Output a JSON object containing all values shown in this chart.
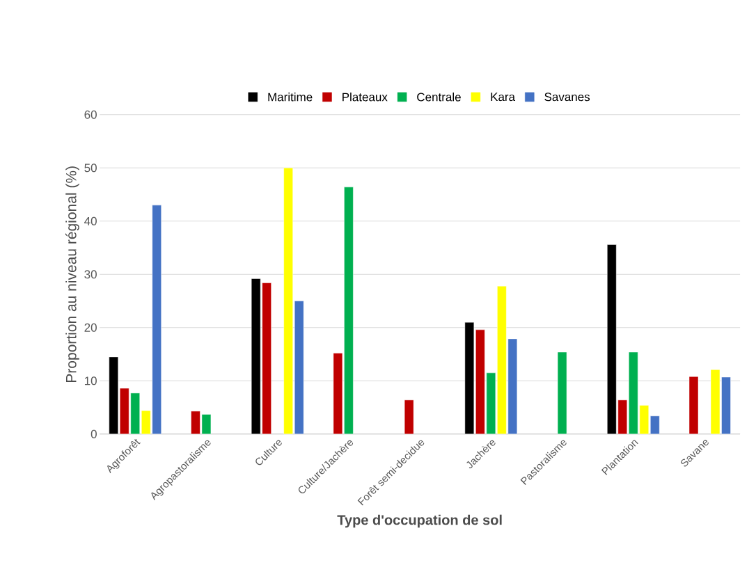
{
  "chart_data": {
    "type": "bar",
    "xlabel": "Type d'occupation de sol",
    "ylabel": "Proportion au niveau régional (%)",
    "categories": [
      "Agroforêt",
      "Agropastoralisme",
      "Culture",
      "Culture/Jachère",
      "Forêt semi-decidue",
      "Jachère",
      "Pastoralisme",
      "Plantation",
      "Savane"
    ],
    "series": [
      {
        "name": "Maritime",
        "color": "#000000",
        "values": [
          14.5,
          null,
          29.2,
          null,
          null,
          21.0,
          null,
          35.6,
          null
        ]
      },
      {
        "name": "Plateaux",
        "color": "#c00000",
        "values": [
          8.6,
          4.3,
          28.4,
          15.2,
          6.4,
          19.6,
          null,
          6.4,
          10.8
        ]
      },
      {
        "name": "Centrale",
        "color": "#00b050",
        "values": [
          7.7,
          3.7,
          null,
          46.4,
          null,
          11.5,
          15.4,
          15.4,
          null
        ]
      },
      {
        "name": "Kara",
        "color": "#ffff00",
        "values": [
          4.4,
          null,
          50.0,
          null,
          null,
          27.8,
          null,
          5.4,
          12.1
        ]
      },
      {
        "name": "Savanes",
        "color": "#4472c4",
        "values": [
          43.0,
          null,
          25.0,
          null,
          null,
          17.9,
          null,
          3.4,
          10.7
        ]
      }
    ],
    "ylim": [
      0,
      60
    ],
    "yticks": [
      0,
      10,
      20,
      30,
      40,
      50,
      60
    ],
    "grid": "y",
    "legend": "top"
  }
}
